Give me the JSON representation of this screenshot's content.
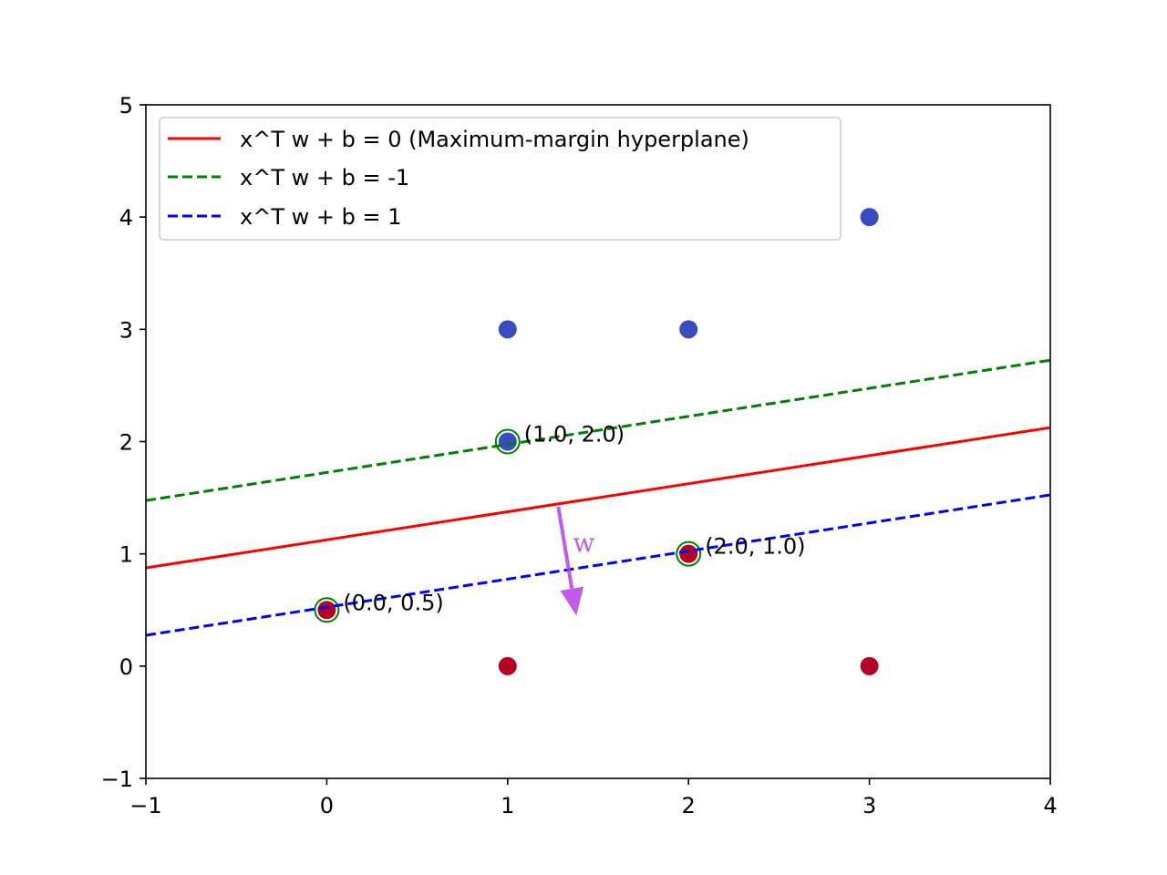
{
  "chart_data": {
    "type": "scatter",
    "xlim": [
      -1,
      4
    ],
    "ylim": [
      -1,
      5
    ],
    "x_ticks": [
      -1,
      0,
      1,
      2,
      3,
      4
    ],
    "y_ticks": [
      -1,
      0,
      1,
      2,
      3,
      4,
      5
    ],
    "x_tick_labels": [
      "−1",
      "0",
      "1",
      "2",
      "3",
      "4"
    ],
    "y_tick_labels": [
      "−1",
      "0",
      "1",
      "2",
      "3",
      "4",
      "5"
    ],
    "grid": false,
    "legend_position": "upper-left",
    "points": [
      {
        "x": 1,
        "y": 3,
        "class": "blue"
      },
      {
        "x": 2,
        "y": 3,
        "class": "blue"
      },
      {
        "x": 3,
        "y": 4,
        "class": "blue"
      },
      {
        "x": 1,
        "y": 2,
        "class": "blue"
      },
      {
        "x": 0,
        "y": 0.5,
        "class": "red"
      },
      {
        "x": 2,
        "y": 1,
        "class": "red"
      },
      {
        "x": 1,
        "y": 0,
        "class": "red"
      },
      {
        "x": 3,
        "y": 0,
        "class": "red"
      }
    ],
    "point_colors": {
      "blue": "#3b4cc0",
      "red": "#b40426"
    },
    "support_vectors": [
      {
        "x": 1,
        "y": 2,
        "label": "(1.0, 2.0)"
      },
      {
        "x": 2,
        "y": 1,
        "label": "(2.0, 1.0)"
      },
      {
        "x": 0,
        "y": 0.5,
        "label": "(0.0, 0.5)"
      }
    ],
    "support_vector_ring_color": "#008000",
    "lines": [
      {
        "name": "x^T w + b = 0 (Maximum-margin hyperplane)",
        "color": "#ff0000",
        "dash": "solid",
        "x": [
          -1,
          4
        ],
        "y": [
          0.875,
          2.125
        ]
      },
      {
        "name": "x^T w + b = -1",
        "color": "#008000",
        "dash": "dashed",
        "x": [
          -1,
          4
        ],
        "y": [
          1.475,
          2.725
        ]
      },
      {
        "name": "x^T w + b = 1",
        "color": "#0000ff",
        "dash": "dashed",
        "x": [
          -1,
          4
        ],
        "y": [
          0.275,
          1.525
        ]
      }
    ],
    "normal_vector": {
      "label": "w",
      "color": "#b53ee8",
      "from": [
        1.28,
        1.42
      ],
      "to": [
        1.38,
        0.45
      ]
    }
  }
}
